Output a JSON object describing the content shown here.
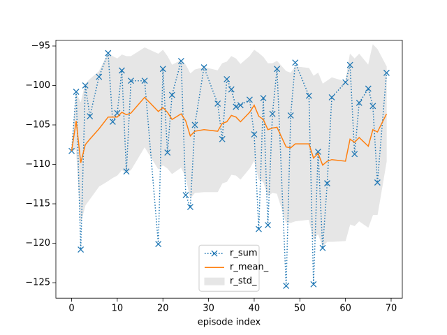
{
  "chart_data": {
    "type": "line",
    "xlabel": "episode index",
    "x": [
      0,
      1,
      2,
      3,
      4,
      6,
      8,
      9,
      10,
      11,
      12,
      13,
      16,
      19,
      20,
      21,
      22,
      24,
      25,
      26,
      27,
      29,
      32,
      33,
      34,
      35,
      36,
      37,
      39,
      40,
      41,
      42,
      43,
      44,
      45,
      47,
      48,
      49,
      52,
      53,
      54,
      55,
      56,
      57,
      60,
      61,
      62,
      63,
      65,
      66,
      67,
      69
    ],
    "series": [
      {
        "name": "r_sum",
        "color": "#1f77b4",
        "style": "dotted-x",
        "values": [
          -108.3,
          -100.8,
          -120.8,
          -100,
          -103.9,
          -98.9,
          -95.9,
          -104.6,
          -103.5,
          -98.1,
          -110.9,
          -99.4,
          -99.4,
          -120.1,
          -97.9,
          -108.5,
          -101.2,
          -96.9,
          -113.9,
          -115.4,
          -105,
          -97.7,
          -102.3,
          -106.8,
          -99.2,
          -100.5,
          -102.7,
          -102.5,
          -101.8,
          -106.2,
          -118.2,
          -101.6,
          -117.7,
          -103.6,
          -97.9,
          -125.4,
          -103.8,
          -97.1,
          -101.3,
          -125.2,
          -108.4,
          -120.6,
          -112.4,
          -101.5,
          -99.6,
          -97.4,
          -108.7,
          -102.2,
          -100.4,
          -102.6,
          -112.3,
          -98.4
        ]
      },
      {
        "name": "r_mean_",
        "color": "#ff7f0e",
        "style": "solid",
        "values": [
          -108.3,
          -104.5,
          -109.8,
          -107.5,
          -106.8,
          -105.5,
          -104,
          -104,
          -104,
          -103.4,
          -103.7,
          -103.5,
          -101.5,
          -103.3,
          -102.8,
          -103.4,
          -104.3,
          -103.6,
          -104.5,
          -106.4,
          -105.8,
          -105.6,
          -105.8,
          -104.8,
          -104.6,
          -103.8,
          -104,
          -104.6,
          -103.4,
          -102.5,
          -103.9,
          -104.3,
          -105.6,
          -105.4,
          -105.3,
          -107.8,
          -107.9,
          -107.4,
          -107.4,
          -109.2,
          -108.6,
          -110.1,
          -109.6,
          -109.4,
          -109.6,
          -106.8,
          -107.2,
          -106.6,
          -107.7,
          -105.6,
          -105.9,
          -103.6
        ]
      },
      {
        "name": "r_std_",
        "color": "#e6e6e6",
        "style": "band",
        "values": [
          0,
          3.6,
          7.6,
          7.7,
          7.6,
          7.3,
          8.1,
          7.7,
          7.4,
          7.3,
          7.4,
          7.2,
          6.3,
          7.3,
          7.3,
          7.1,
          6.9,
          6.8,
          7.1,
          7.9,
          7.8,
          7.9,
          7.7,
          7.6,
          7.6,
          7.5,
          7.4,
          7.3,
          7.1,
          7,
          8,
          7.9,
          8.4,
          8.2,
          8.4,
          9.6,
          9.5,
          9.8,
          9.6,
          10.4,
          10.2,
          10.3,
          10.2,
          10.4,
          10.1,
          10.8,
          10.6,
          10.6,
          10.3,
          10.8,
          10.5,
          6
        ]
      }
    ],
    "xlim": [
      -3.45,
      72.45
    ],
    "xticks": [
      0,
      10,
      20,
      30,
      40,
      50,
      60,
      70
    ],
    "ylim": [
      -126.96,
      -94.26
    ],
    "yticks": [
      {
        "value": -95,
        "label": "−95"
      },
      {
        "value": -100,
        "label": "−100"
      },
      {
        "value": -105,
        "label": "−105"
      },
      {
        "value": -110,
        "label": "−110"
      },
      {
        "value": -115,
        "label": "−115"
      },
      {
        "value": -120,
        "label": "−120"
      },
      {
        "value": -125,
        "label": "−125"
      }
    ],
    "legend": "lower center"
  }
}
